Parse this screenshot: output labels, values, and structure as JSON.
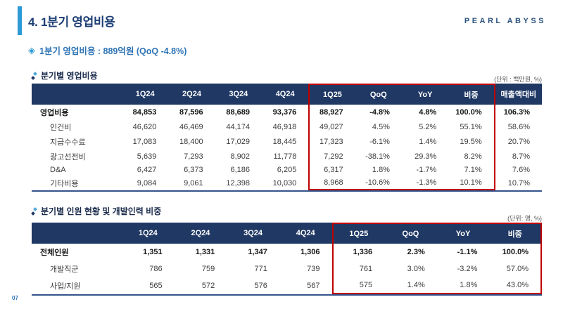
{
  "slide": {
    "title": "4. 1분기 영업비용",
    "logo": "PEARL ABYSS",
    "subtitle": "1분기 영업비용 : 889억원 (QoQ -4.8%)",
    "page_number": "07"
  },
  "colors": {
    "accent_bar": "#2D9AD5",
    "table_header_navy": "#1F3864",
    "highlight_red": "#C00000",
    "title_blue": "#1C3E74",
    "subtitle_blue": "#2E74B5"
  },
  "icons": {
    "subtitle_bullet": "diamond-icon",
    "section_bullet": "colon-diamond-icon"
  },
  "table1": {
    "heading": "분기별 영업비용",
    "unit": "(단위 : 백만원, %)",
    "columns": [
      "",
      "1Q24",
      "2Q24",
      "3Q24",
      "4Q24",
      "1Q25",
      "QoQ",
      "YoY",
      "비중",
      "매출액대비"
    ],
    "rows": [
      [
        "영업비용",
        "84,853",
        "87,596",
        "88,689",
        "93,376",
        "88,927",
        "-4.8%",
        "4.8%",
        "100.0%",
        "106.3%"
      ],
      [
        "인건비",
        "46,620",
        "46,469",
        "44,174",
        "46,918",
        "49,027",
        "4.5%",
        "5.2%",
        "55.1%",
        "58.6%"
      ],
      [
        "지급수수료",
        "17,083",
        "18,400",
        "17,029",
        "18,445",
        "17,323",
        "-6.1%",
        "1.4%",
        "19.5%",
        "20.7%"
      ],
      [
        "광고선전비",
        "5,639",
        "7,293",
        "8,902",
        "11,778",
        "7,292",
        "-38.1%",
        "29.3%",
        "8.2%",
        "8.7%"
      ],
      [
        "D&A",
        "6,427",
        "6,373",
        "6,186",
        "6,205",
        "6,317",
        "1.8%",
        "-1.7%",
        "7.1%",
        "7.6%"
      ],
      [
        "기타비용",
        "9,084",
        "9,061",
        "12,398",
        "10,030",
        "8,968",
        "-10.6%",
        "-1.3%",
        "10.1%",
        "10.7%"
      ]
    ]
  },
  "table2": {
    "heading": "분기별 인원 현황 및 개발인력 비중",
    "unit": "(단위: 명, %)",
    "columns": [
      "",
      "1Q24",
      "2Q24",
      "3Q24",
      "4Q24",
      "1Q25",
      "QoQ",
      "YoY",
      "비중"
    ],
    "rows": [
      [
        "전체인원",
        "1,351",
        "1,331",
        "1,347",
        "1,306",
        "1,336",
        "2.3%",
        "-1.1%",
        "100.0%"
      ],
      [
        "개발직군",
        "786",
        "759",
        "771",
        "739",
        "761",
        "3.0%",
        "-3.2%",
        "57.0%"
      ],
      [
        "사업/지원",
        "565",
        "572",
        "576",
        "567",
        "575",
        "1.4%",
        "1.8%",
        "43.0%"
      ]
    ]
  }
}
